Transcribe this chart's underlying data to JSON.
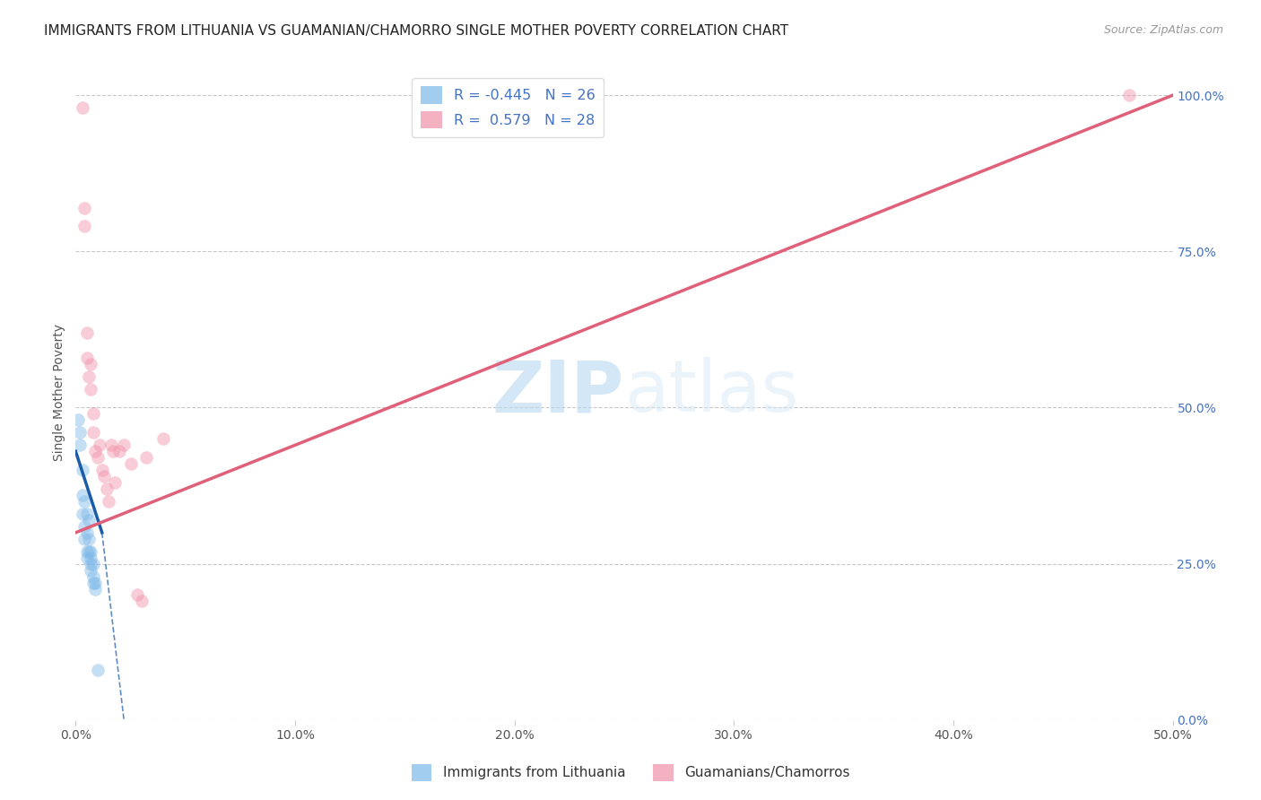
{
  "title": "IMMIGRANTS FROM LITHUANIA VS GUAMANIAN/CHAMORRO SINGLE MOTHER POVERTY CORRELATION CHART",
  "source": "Source: ZipAtlas.com",
  "xlabel_ticks": [
    "0.0%",
    "10.0%",
    "20.0%",
    "30.0%",
    "40.0%",
    "50.0%"
  ],
  "xlabel_vals": [
    0.0,
    0.1,
    0.2,
    0.3,
    0.4,
    0.5
  ],
  "ylabel": "Single Mother Poverty",
  "ylabel_right_ticks": [
    "0.0%",
    "25.0%",
    "50.0%",
    "75.0%",
    "100.0%"
  ],
  "ylabel_right_vals": [
    0.0,
    0.25,
    0.5,
    0.75,
    1.0
  ],
  "xlim": [
    0.0,
    0.5
  ],
  "ylim": [
    0.0,
    1.05
  ],
  "legend_label_r1": "R = -0.445",
  "legend_label_n1": "N = 26",
  "legend_label_r2": "R =  0.579",
  "legend_label_n2": "N = 28",
  "legend_label_1": "Immigrants from Lithuania",
  "legend_label_2": "Guamanians/Chamorros",
  "blue_scatter_x": [
    0.001,
    0.002,
    0.002,
    0.003,
    0.003,
    0.003,
    0.004,
    0.004,
    0.004,
    0.005,
    0.005,
    0.005,
    0.005,
    0.006,
    0.006,
    0.006,
    0.007,
    0.007,
    0.007,
    0.007,
    0.008,
    0.008,
    0.008,
    0.009,
    0.009,
    0.01
  ],
  "blue_scatter_y": [
    0.48,
    0.46,
    0.44,
    0.4,
    0.36,
    0.33,
    0.35,
    0.31,
    0.29,
    0.33,
    0.3,
    0.27,
    0.26,
    0.32,
    0.29,
    0.27,
    0.27,
    0.26,
    0.25,
    0.24,
    0.25,
    0.23,
    0.22,
    0.22,
    0.21,
    0.08
  ],
  "pink_scatter_x": [
    0.003,
    0.004,
    0.004,
    0.005,
    0.005,
    0.006,
    0.007,
    0.007,
    0.008,
    0.008,
    0.009,
    0.01,
    0.011,
    0.012,
    0.013,
    0.014,
    0.015,
    0.016,
    0.017,
    0.018,
    0.02,
    0.022,
    0.025,
    0.028,
    0.03,
    0.032,
    0.04,
    0.48
  ],
  "pink_scatter_y": [
    0.98,
    0.82,
    0.79,
    0.62,
    0.58,
    0.55,
    0.57,
    0.53,
    0.49,
    0.46,
    0.43,
    0.42,
    0.44,
    0.4,
    0.39,
    0.37,
    0.35,
    0.44,
    0.43,
    0.38,
    0.43,
    0.44,
    0.41,
    0.2,
    0.19,
    0.42,
    0.45,
    1.0
  ],
  "blue_line_x1": 0.0,
  "blue_line_y1": 0.43,
  "blue_line_x2": 0.012,
  "blue_line_y2": 0.3,
  "blue_line_ext_x2": 0.022,
  "blue_line_ext_y2": 0.0,
  "pink_line_x1": 0.0,
  "pink_line_y1": 0.3,
  "pink_line_x2": 0.5,
  "pink_line_y2": 1.0,
  "watermark_zip": "ZIP",
  "watermark_atlas": "atlas",
  "scatter_size": 110,
  "scatter_alpha": 0.45,
  "blue_color": "#7db8e8",
  "pink_color": "#f090a8",
  "blue_line_color": "#1a5ca8",
  "pink_line_color": "#e0607a",
  "grid_color": "#c8c8c8",
  "background_color": "#ffffff",
  "title_fontsize": 11,
  "axis_label_fontsize": 10,
  "tick_fontsize": 10,
  "right_tick_color": "#4472c4",
  "bottom_tick_color": "#555555"
}
